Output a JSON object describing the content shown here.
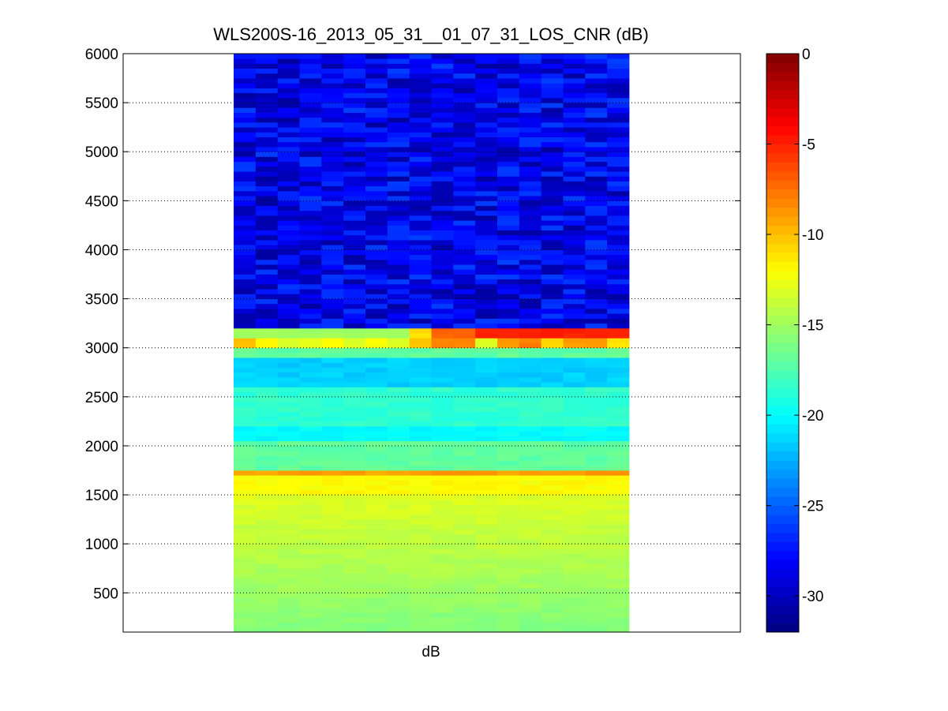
{
  "chart_data": [
    {
      "type": "heatmap",
      "title": "WLS200S-16_2013_05_31__01_07_31_LOS_CNR (dB)",
      "xlabel": "dB",
      "ylabel": "",
      "ylim": [
        100,
        6000
      ],
      "yticks": [
        500,
        1000,
        1500,
        2000,
        2500,
        3000,
        3500,
        4000,
        4500,
        5000,
        5500,
        6000
      ],
      "y_grid": "dotted",
      "columns": 18,
      "row_height": 50,
      "data_y_range": [
        100,
        6000
      ],
      "bands": [
        {
          "from": 100,
          "to": 1500,
          "value_bottom": -16,
          "value_top": -13
        },
        {
          "from": 1500,
          "to": 1700,
          "value": -12
        },
        {
          "from": 1700,
          "to": 1750,
          "value": -9
        },
        {
          "from": 1750,
          "to": 2050,
          "value": -17
        },
        {
          "from": 2050,
          "to": 2200,
          "value": -20
        },
        {
          "from": 2200,
          "to": 2600,
          "value": -18.5
        },
        {
          "from": 2600,
          "to": 2900,
          "value": -21.5
        },
        {
          "from": 2900,
          "to": 3000,
          "value": -17
        },
        {
          "from": 3000,
          "to": 3100,
          "values_by_column": [
            -10,
            -12,
            -13,
            -13,
            -12,
            -13,
            -12,
            -13,
            -10,
            -8,
            -8,
            -13,
            -9,
            -8,
            -11,
            -9,
            -9,
            -11
          ]
        },
        {
          "from": 3100,
          "to": 3200,
          "values_by_column": [
            -15,
            -15,
            -15,
            -15,
            -15,
            -15,
            -15,
            -15,
            -11,
            -7,
            -7,
            -5,
            -5,
            -5,
            -5,
            -5,
            -5,
            -5
          ]
        },
        {
          "from": 3200,
          "to": 6000,
          "value_range": [
            -31,
            -26
          ]
        }
      ]
    },
    {
      "type": "colorbar",
      "colormap": "jet",
      "clim": [
        -32,
        0
      ],
      "ticks": [
        0,
        -5,
        -10,
        -15,
        -20,
        -25,
        -30
      ],
      "tick_labels": [
        "0",
        "-5",
        "-10",
        "-15",
        "-20",
        "-25",
        "-30"
      ]
    }
  ],
  "colors": {
    "background": "#ffffff",
    "axis": "#000000",
    "jet_stops": [
      "#00008f",
      "#0000ff",
      "#00ffff",
      "#ffff00",
      "#ff0000",
      "#800000"
    ]
  }
}
